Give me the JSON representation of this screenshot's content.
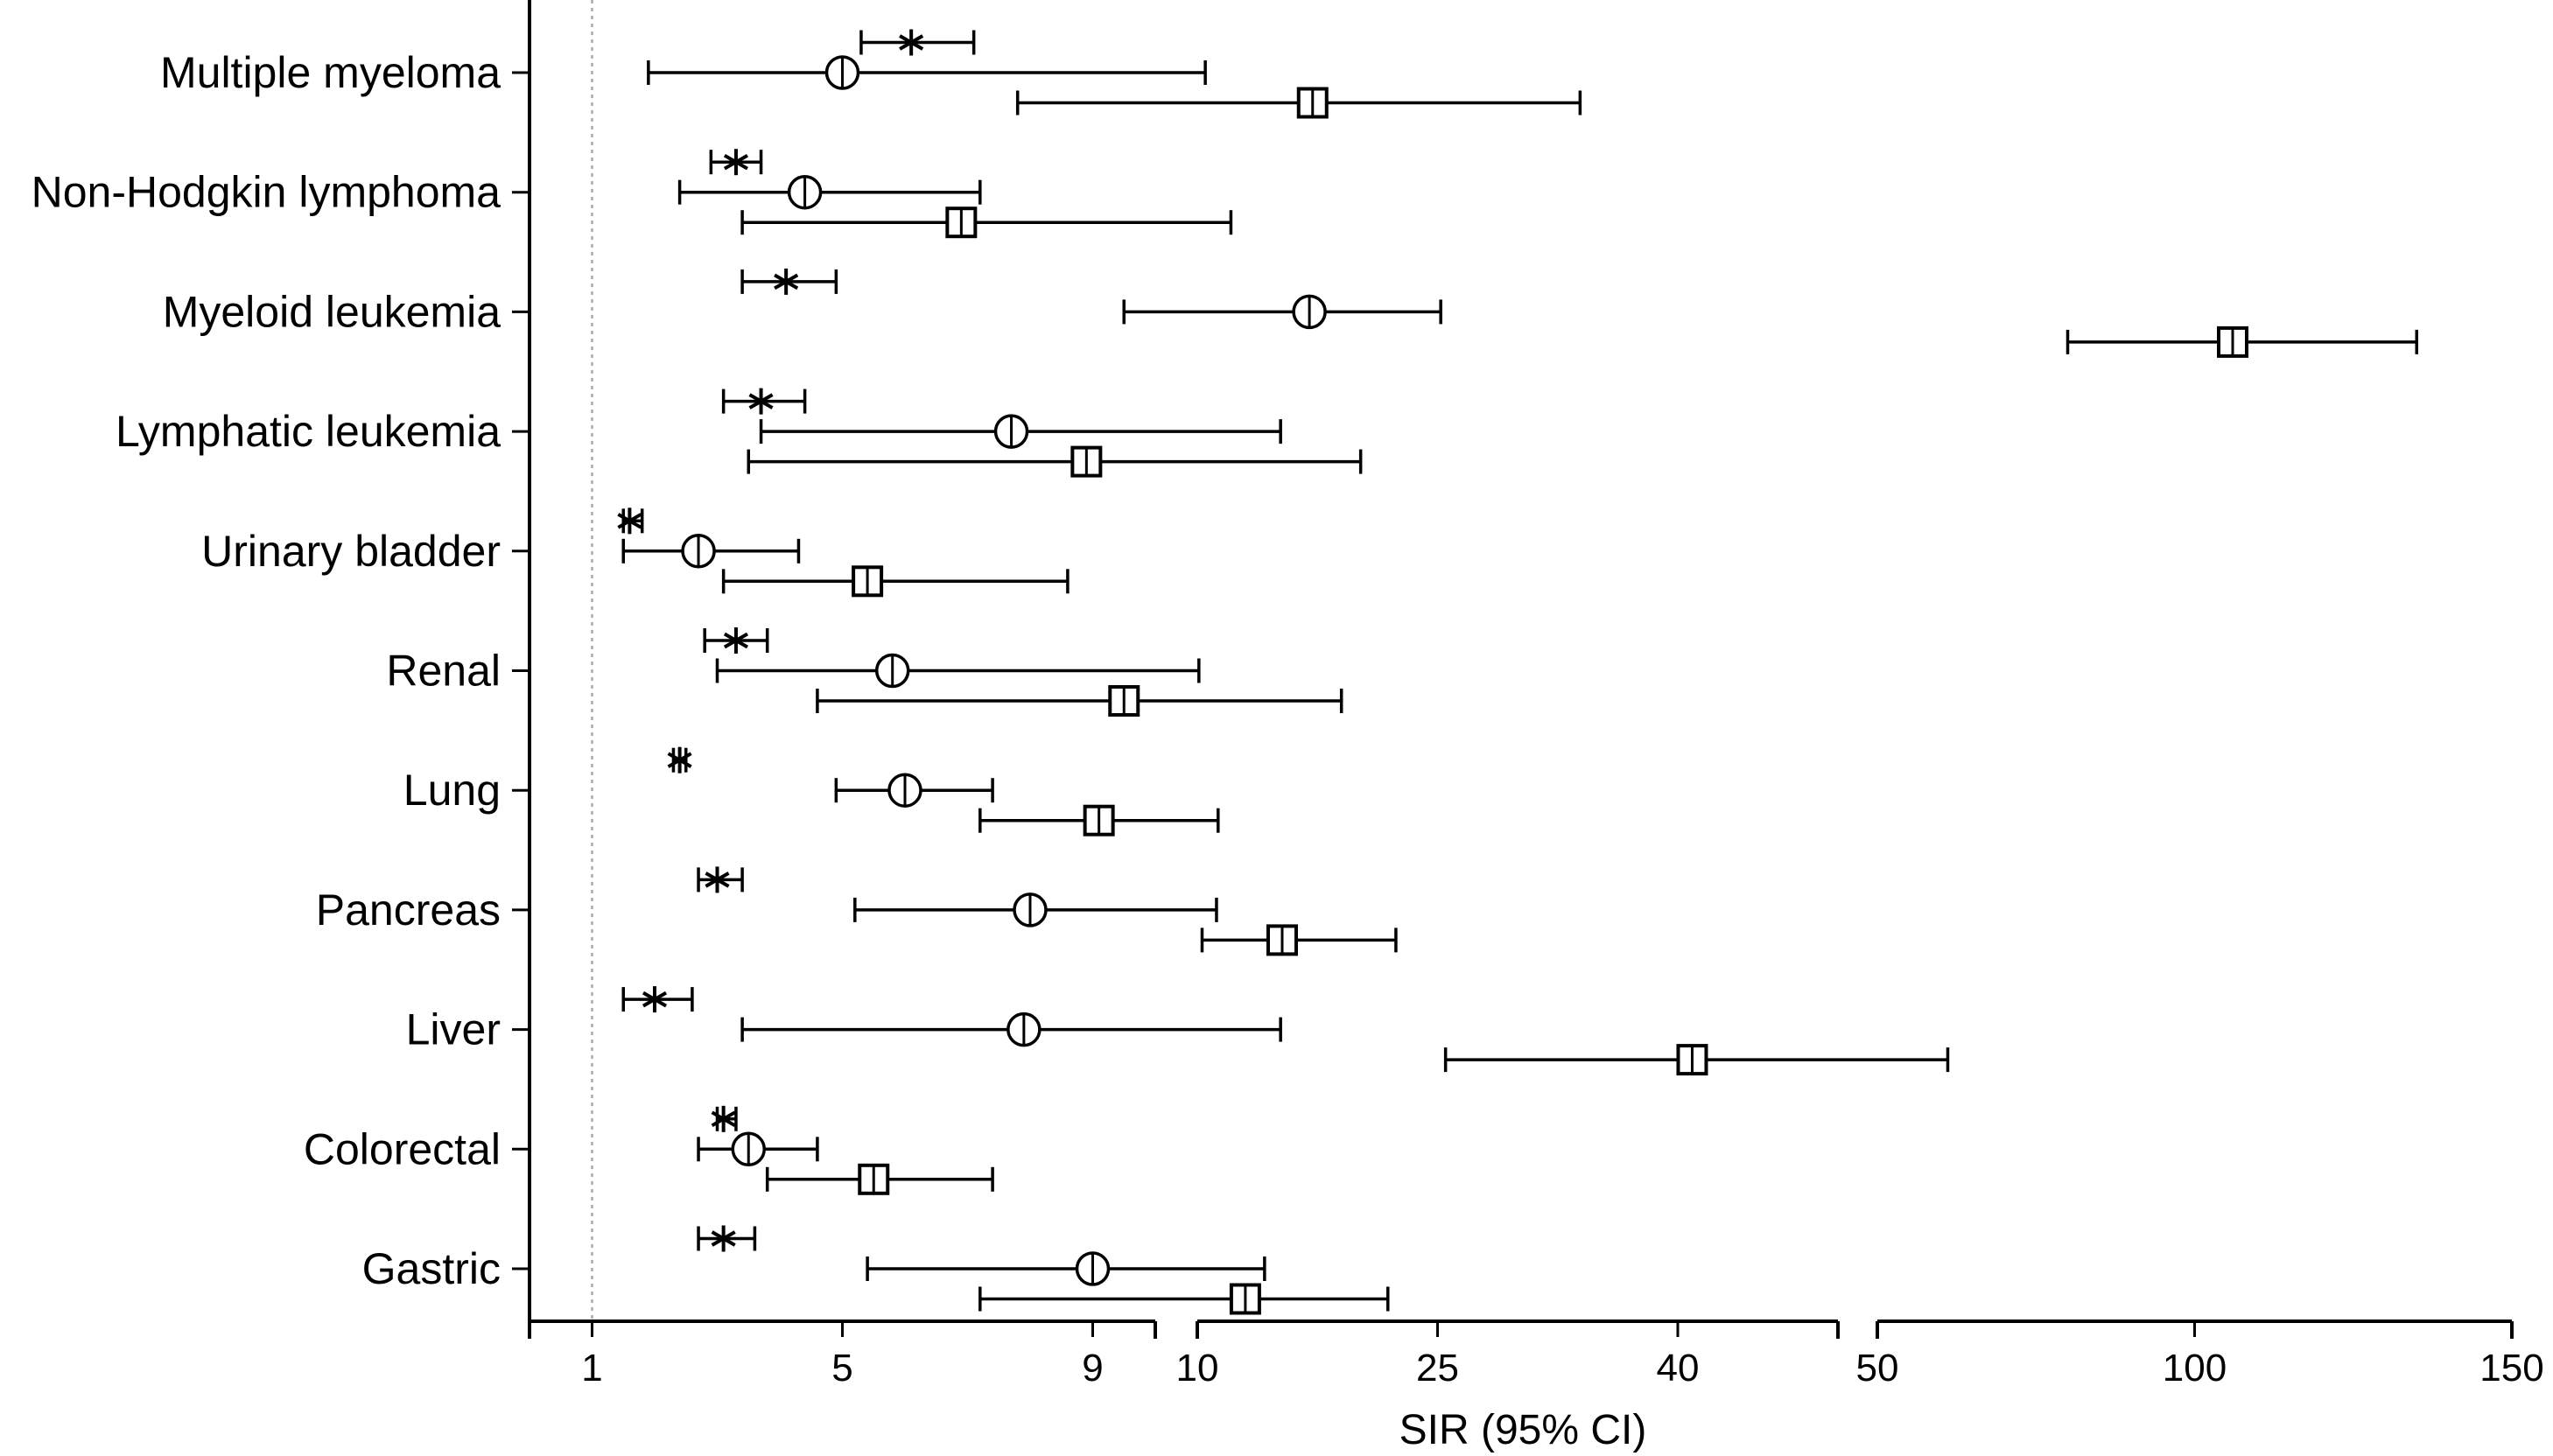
{
  "chart_data": {
    "type": "forest",
    "title": "",
    "xlabel": "SIR (95% CI)",
    "ylabel": "",
    "x_scale": "piecewise-linear with axis breaks",
    "x_axis_segments": [
      {
        "domain": [
          0,
          10
        ],
        "ticks": [
          1,
          5,
          9
        ]
      },
      {
        "domain": [
          10,
          50
        ],
        "ticks": [
          10,
          25,
          40
        ]
      },
      {
        "domain": [
          50,
          150
        ],
        "ticks": [
          50,
          100,
          150
        ]
      }
    ],
    "reference_line": 1,
    "marker_types": [
      "asterisk",
      "circle",
      "square"
    ],
    "categories": [
      {
        "label": "Multiple myeloma",
        "rows": [
          {
            "marker": "asterisk",
            "est": 6.1,
            "lo": 5.3,
            "hi": 7.1
          },
          {
            "marker": "circle",
            "est": 5.0,
            "lo": 1.9,
            "hi": 10.5
          },
          {
            "marker": "square",
            "est": 17.2,
            "lo": 7.8,
            "hi": 33.9
          }
        ]
      },
      {
        "label": "Non-Hodgkin lymphoma",
        "rows": [
          {
            "marker": "asterisk",
            "est": 3.3,
            "lo": 2.9,
            "hi": 3.7
          },
          {
            "marker": "circle",
            "est": 4.4,
            "lo": 2.4,
            "hi": 7.2
          },
          {
            "marker": "square",
            "est": 6.9,
            "lo": 3.4,
            "hi": 12.1
          }
        ]
      },
      {
        "label": "Myeloid leukemia",
        "rows": [
          {
            "marker": "asterisk",
            "est": 4.1,
            "lo": 3.4,
            "hi": 4.9
          },
          {
            "marker": "circle",
            "est": 17.0,
            "lo": 9.5,
            "hi": 25.2
          },
          {
            "marker": "square",
            "est": 106,
            "lo": 80,
            "hi": 135
          }
        ]
      },
      {
        "label": "Lymphatic leukemia",
        "rows": [
          {
            "marker": "asterisk",
            "est": 3.7,
            "lo": 3.1,
            "hi": 4.4
          },
          {
            "marker": "circle",
            "est": 7.7,
            "lo": 3.7,
            "hi": 15.2
          },
          {
            "marker": "square",
            "est": 8.9,
            "lo": 3.5,
            "hi": 20.2
          }
        ]
      },
      {
        "label": "Urinary bladder",
        "rows": [
          {
            "marker": "asterisk",
            "est": 1.6,
            "lo": 1.5,
            "hi": 1.8
          },
          {
            "marker": "circle",
            "est": 2.7,
            "lo": 1.5,
            "hi": 4.3
          },
          {
            "marker": "square",
            "est": 5.4,
            "lo": 3.1,
            "hi": 8.6
          }
        ]
      },
      {
        "label": "Renal",
        "rows": [
          {
            "marker": "asterisk",
            "est": 3.3,
            "lo": 2.8,
            "hi": 3.8
          },
          {
            "marker": "circle",
            "est": 5.8,
            "lo": 3.0,
            "hi": 10.1
          },
          {
            "marker": "square",
            "est": 9.5,
            "lo": 4.6,
            "hi": 19.0
          }
        ]
      },
      {
        "label": "Lung",
        "rows": [
          {
            "marker": "asterisk",
            "est": 2.4,
            "lo": 2.3,
            "hi": 2.5
          },
          {
            "marker": "circle",
            "est": 6.0,
            "lo": 4.9,
            "hi": 7.4
          },
          {
            "marker": "square",
            "est": 9.1,
            "lo": 7.2,
            "hi": 11.3
          }
        ]
      },
      {
        "label": "Pancreas",
        "rows": [
          {
            "marker": "asterisk",
            "est": 3.0,
            "lo": 2.7,
            "hi": 3.4
          },
          {
            "marker": "circle",
            "est": 8.0,
            "lo": 5.2,
            "hi": 11.2
          },
          {
            "marker": "square",
            "est": 15.3,
            "lo": 10.3,
            "hi": 22.4
          }
        ]
      },
      {
        "label": "Liver",
        "rows": [
          {
            "marker": "asterisk",
            "est": 2.0,
            "lo": 1.5,
            "hi": 2.6
          },
          {
            "marker": "circle",
            "est": 7.9,
            "lo": 3.4,
            "hi": 15.2
          },
          {
            "marker": "square",
            "est": 40.9,
            "lo": 25.5,
            "hi": 61.1
          }
        ]
      },
      {
        "label": "Colorectal",
        "rows": [
          {
            "marker": "asterisk",
            "est": 3.1,
            "lo": 3.0,
            "hi": 3.3
          },
          {
            "marker": "circle",
            "est": 3.5,
            "lo": 2.7,
            "hi": 4.6
          },
          {
            "marker": "square",
            "est": 5.5,
            "lo": 3.8,
            "hi": 7.4
          }
        ]
      },
      {
        "label": "Gastric",
        "rows": [
          {
            "marker": "asterisk",
            "est": 3.1,
            "lo": 2.7,
            "hi": 3.6
          },
          {
            "marker": "circle",
            "est": 9.0,
            "lo": 5.4,
            "hi": 14.2
          },
          {
            "marker": "square",
            "est": 13.0,
            "lo": 7.2,
            "hi": 21.9
          }
        ]
      }
    ]
  }
}
